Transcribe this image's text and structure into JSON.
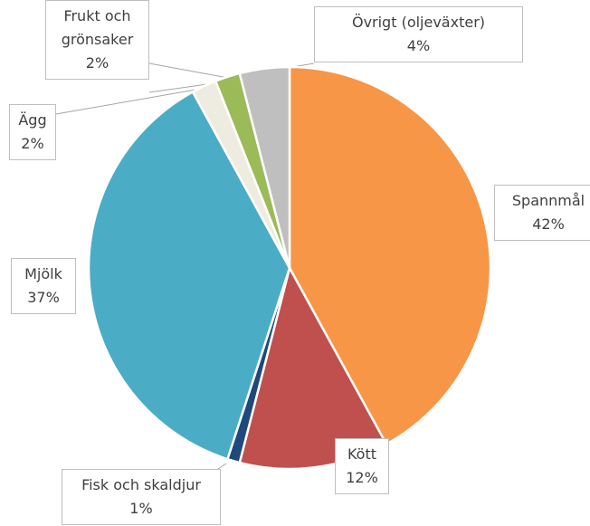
{
  "chart_data": {
    "type": "pie",
    "categories": [
      "Spannmål",
      "Kött",
      "Fisk och skaldjur",
      "Mjölk",
      "Ägg",
      "Frukt och grönsaker",
      "Övrigt (oljeväxter)"
    ],
    "values": [
      42,
      12,
      1,
      37,
      2,
      2,
      4
    ],
    "value_labels": [
      "42%",
      "12%",
      "1%",
      "37%",
      "2%",
      "2%",
      "4%"
    ],
    "colors": [
      "#f79646",
      "#c0504d",
      "#1f497d",
      "#4bacc6",
      "#eeece1",
      "#9bbb59",
      "#bfbfbf"
    ]
  }
}
